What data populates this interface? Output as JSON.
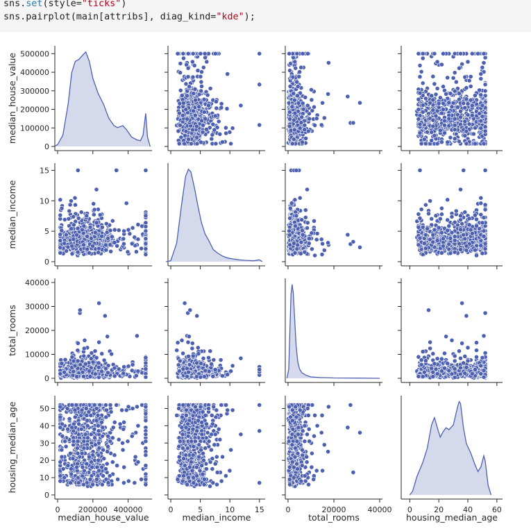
{
  "code_cell": {
    "line1": {
      "obj": "sns.",
      "fn": "set",
      "arg_open": "(style=",
      "arg_str": "\"ticks\"",
      "arg_close": ")"
    },
    "line2": {
      "pre": "sns.pairplot(main[attribs], diag_kind=",
      "str": "\"kde\"",
      "post": ");"
    }
  },
  "colors": {
    "accent": "#4c5fb0",
    "kde_fill": "#d5d9ec",
    "axis": "#262626",
    "code_bg": "#f5f5f5"
  },
  "chart_data": {
    "type": "pairplot",
    "diag_kind": "kde",
    "variables": [
      {
        "name": "median_house_value",
        "range": [
          0,
          520000
        ],
        "ticks": [
          0,
          100000,
          200000,
          300000,
          400000,
          500000
        ],
        "tick_labels": [
          "0",
          "100000",
          "200000",
          "300000",
          "400000",
          "500000"
        ],
        "x_ticks": [
          0,
          200000,
          400000
        ],
        "x_tick_labels": [
          "0",
          "200000",
          "400000"
        ],
        "kde": [
          [
            -20000,
            0
          ],
          [
            0,
            0.02
          ],
          [
            30000,
            0.12
          ],
          [
            60000,
            0.45
          ],
          [
            80000,
            0.78
          ],
          [
            100000,
            0.9
          ],
          [
            120000,
            0.92
          ],
          [
            140000,
            0.96
          ],
          [
            160000,
            1.0
          ],
          [
            180000,
            0.9
          ],
          [
            200000,
            0.72
          ],
          [
            230000,
            0.56
          ],
          [
            260000,
            0.45
          ],
          [
            290000,
            0.3
          ],
          [
            320000,
            0.22
          ],
          [
            340000,
            0.2
          ],
          [
            370000,
            0.22
          ],
          [
            390000,
            0.18
          ],
          [
            420000,
            0.1
          ],
          [
            450000,
            0.07
          ],
          [
            470000,
            0.06
          ],
          [
            485000,
            0.12
          ],
          [
            500000,
            0.35
          ],
          [
            510000,
            0.1
          ],
          [
            525000,
            0
          ]
        ]
      },
      {
        "name": "median_income",
        "range": [
          0,
          15.5
        ],
        "ticks": [
          0,
          5,
          10,
          15
        ],
        "tick_labels": [
          "0",
          "5",
          "10",
          "15"
        ],
        "x_ticks": [
          0,
          5,
          10,
          15
        ],
        "x_tick_labels": [
          "0",
          "5",
          "10",
          "15"
        ],
        "kde": [
          [
            -0.8,
            0
          ],
          [
            0,
            0.01
          ],
          [
            1,
            0.2
          ],
          [
            1.8,
            0.6
          ],
          [
            2.5,
            0.92
          ],
          [
            3,
            1.0
          ],
          [
            3.4,
            0.97
          ],
          [
            4,
            0.8
          ],
          [
            4.6,
            0.6
          ],
          [
            5.2,
            0.42
          ],
          [
            5.8,
            0.3
          ],
          [
            6.5,
            0.22
          ],
          [
            7.2,
            0.13
          ],
          [
            8,
            0.09
          ],
          [
            8.8,
            0.06
          ],
          [
            9.6,
            0.04
          ],
          [
            10.5,
            0.03
          ],
          [
            11.5,
            0.02
          ],
          [
            12.5,
            0.015
          ],
          [
            14,
            0.01
          ],
          [
            15,
            0.02
          ],
          [
            15.5,
            0
          ]
        ]
      },
      {
        "name": "total_rooms",
        "range": [
          0,
          40000
        ],
        "ticks": [
          0,
          10000,
          20000,
          30000,
          40000
        ],
        "tick_labels": [
          "0",
          "10000",
          "20000",
          "30000",
          "40000"
        ],
        "x_ticks": [
          0,
          20000,
          40000
        ],
        "x_tick_labels": [
          "0",
          "20000",
          "40000"
        ],
        "kde": [
          [
            -500,
            0
          ],
          [
            300,
            0.1
          ],
          [
            800,
            0.5
          ],
          [
            1300,
            0.9
          ],
          [
            1800,
            1.0
          ],
          [
            2300,
            0.9
          ],
          [
            2900,
            0.62
          ],
          [
            3500,
            0.35
          ],
          [
            4200,
            0.18
          ],
          [
            5000,
            0.1
          ],
          [
            6000,
            0.06
          ],
          [
            8000,
            0.03
          ],
          [
            10000,
            0.015
          ],
          [
            14000,
            0.008
          ],
          [
            20000,
            0.004
          ],
          [
            30000,
            0.002
          ],
          [
            40000,
            0
          ]
        ]
      },
      {
        "name": "housing_median_age",
        "range": [
          0,
          55
        ],
        "ticks": [
          0,
          10,
          20,
          30,
          40,
          50
        ],
        "tick_labels": [
          "0",
          "10",
          "20",
          "30",
          "40",
          "50"
        ],
        "x_ticks": [
          0,
          20,
          40,
          60
        ],
        "x_tick_labels": [
          "0",
          "20",
          "40",
          "60"
        ],
        "x_range": [
          -4,
          62
        ],
        "kde": [
          [
            0,
            0
          ],
          [
            2,
            0.04
          ],
          [
            5,
            0.2
          ],
          [
            9,
            0.35
          ],
          [
            12,
            0.5
          ],
          [
            15,
            0.75
          ],
          [
            17,
            0.83
          ],
          [
            19,
            0.72
          ],
          [
            21,
            0.62
          ],
          [
            23,
            0.68
          ],
          [
            25,
            0.72
          ],
          [
            27,
            0.7
          ],
          [
            30,
            0.75
          ],
          [
            33,
            0.95
          ],
          [
            34,
            1.0
          ],
          [
            35,
            0.98
          ],
          [
            37,
            0.72
          ],
          [
            39,
            0.55
          ],
          [
            42,
            0.45
          ],
          [
            45,
            0.32
          ],
          [
            47,
            0.25
          ],
          [
            49,
            0.3
          ],
          [
            51,
            0.42
          ],
          [
            52,
            0.36
          ],
          [
            54,
            0.1
          ],
          [
            56,
            0
          ]
        ]
      }
    ],
    "scatter_summary": "off-diagonal panels: scatter of each variable pair, ~20640 points each; upper panels mirror lower panels"
  }
}
